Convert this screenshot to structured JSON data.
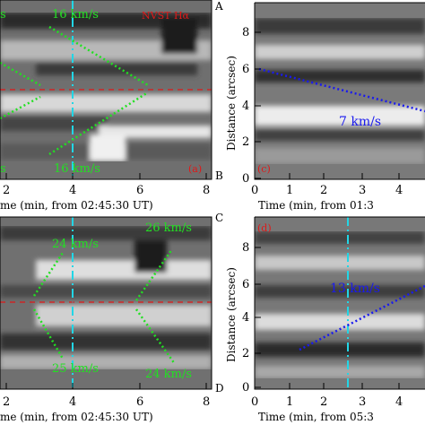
{
  "colors": {
    "green_annotation": "#22e022",
    "blue_annotation": "#1a1aee",
    "red_annotation": "#e01818",
    "cyan_line": "#22d6e6",
    "red_dashed_line": "#e01818"
  },
  "labels": {
    "instrument": "NVST Hα",
    "corner_A": "A",
    "corner_B": "B",
    "corner_C": "C",
    "corner_D": "D",
    "panel_a": "(a)",
    "panel_c": "(c)",
    "panel_d": "(d)",
    "speed_a_top": "16 km/s",
    "speed_a_bottom": "16 km/s",
    "speed_a_left_top": "s",
    "speed_a_left_bottom": "s",
    "speed_b_top_left": "24 km/s",
    "speed_b_top_right": "26 km/s",
    "speed_b_bottom_left": "25 km/s",
    "speed_b_bottom_right": "24 km/s",
    "speed_c": "7 km/s",
    "speed_d": "13 km/s",
    "xlabel_top_left": "me (min, from 02:45:30 UT)",
    "xlabel_top_right": "Time (min, from 01:3",
    "xlabel_bottom_left": "me (min, from 02:45:30 UT)",
    "xlabel_bottom_right": "Time (min, from 05:3",
    "ylabel_right": "Distance (arcsec)"
  },
  "chart_data": [
    {
      "type": "heatmap",
      "panel": "(a)",
      "xlabel": "me (min, from 02:45:30 UT)",
      "x_ticks": [
        "2",
        "4",
        "6",
        "8"
      ],
      "xlim": [
        1.2,
        8.2
      ],
      "annotations": [
        "16 km/s",
        "16 km/s",
        "NVST Hα"
      ],
      "vertical_cyan_line_x": 4.0
    },
    {
      "type": "heatmap",
      "panel": "(c)",
      "xlabel": "Time (min, from 01:3",
      "ylabel": "Distance (arcsec)",
      "x_ticks": [
        "0",
        "1",
        "2",
        "3",
        "4"
      ],
      "y_ticks": [
        "0",
        "2",
        "4",
        "6",
        "8"
      ],
      "xlim": [
        0,
        4.9
      ],
      "ylim": [
        0,
        9.7
      ],
      "fit_line": {
        "label": "7 km/s",
        "x": [
          0.3,
          4.9
        ],
        "y": [
          6.2,
          3.9
        ]
      }
    },
    {
      "type": "heatmap",
      "panel": "",
      "xlabel": "me (min, from 02:45:30 UT)",
      "x_ticks": [
        "2",
        "4",
        "6",
        "8"
      ],
      "xlim": [
        1.2,
        8.2
      ],
      "annotations": [
        "24 km/s",
        "26 km/s",
        "25 km/s",
        "24 km/s"
      ],
      "vertical_cyan_line_x": 4.0
    },
    {
      "type": "heatmap",
      "panel": "(d)",
      "xlabel": "Time (min, from 05:3",
      "ylabel": "Distance (arcsec)",
      "x_ticks": [
        "0",
        "1",
        "2",
        "3",
        "4"
      ],
      "y_ticks": [
        "0",
        "2",
        "4",
        "6",
        "8"
      ],
      "xlim": [
        0,
        4.9
      ],
      "ylim": [
        0,
        9.7
      ],
      "fit_line": {
        "label": "13 km/s",
        "x": [
          1.3,
          4.9
        ],
        "y": [
          2.3,
          6.5
        ]
      },
      "vertical_cyan_line_x": 2.7
    }
  ]
}
